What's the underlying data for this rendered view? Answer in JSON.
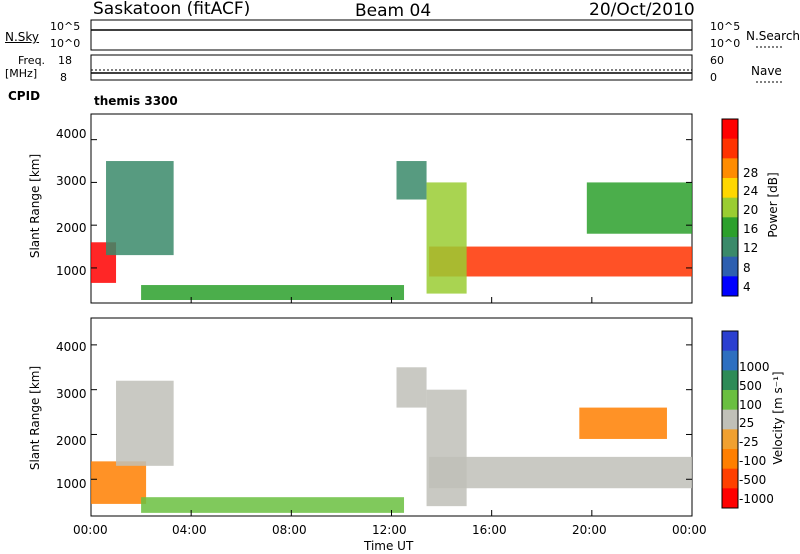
{
  "header": {
    "station": "Saskatoon (fitACF)",
    "beam": "Beam 04",
    "date": "20/Oct/2010"
  },
  "panels": {
    "nsky": {
      "label": "N.Sky",
      "ticks_left": [
        "10^5",
        "10^0"
      ],
      "ticks_right": [
        "10^5",
        "10^0"
      ],
      "right_label": "N.Search"
    },
    "freq": {
      "label_line1": "Freq.",
      "label_line2": "[MHz]",
      "ticks_left": [
        "18",
        "8"
      ],
      "ticks_right": [
        "60",
        "0"
      ],
      "right_label": "Nave"
    },
    "cpid": {
      "label": "CPID",
      "value": "themis 3300"
    }
  },
  "colors": {
    "power_scale": [
      "#0000ff",
      "#2d5fb0",
      "#3a8a6a",
      "#2ca02c",
      "#9acd32",
      "#ffd700",
      "#ff8c00",
      "#ff3300",
      "#ff0000"
    ],
    "velocity_scale": [
      "#2b3fcf",
      "#2d6fc0",
      "#2e8b57",
      "#6abf40",
      "#c0c0b8",
      "#f0a030",
      "#ff7f00",
      "#ff4000",
      "#ff0000"
    ]
  },
  "chart_data": [
    {
      "type": "heatmap",
      "xlabel": "",
      "ylabel": "Slant Range [km]",
      "x_range_hours": [
        0,
        24
      ],
      "ylim": [
        180,
        4600
      ],
      "y_ticks": [
        "1000",
        "2000",
        "3000",
        "4000"
      ],
      "colorbar": {
        "label": "Power [dB]",
        "range": [
          0,
          32
        ],
        "ticks": [
          "4",
          "8",
          "12",
          "16",
          "20",
          "24",
          "28"
        ]
      },
      "regions": [
        {
          "t": [
            0.0,
            1.0
          ],
          "range_km": [
            650,
            1600
          ],
          "value": 30
        },
        {
          "t": [
            0.6,
            3.3
          ],
          "range_km": [
            1300,
            3500
          ],
          "value": 8
        },
        {
          "t": [
            2.0,
            12.5
          ],
          "range_km": [
            250,
            600
          ],
          "value": 10
        },
        {
          "t": [
            12.2,
            13.4
          ],
          "range_km": [
            2600,
            3500
          ],
          "value": 6
        },
        {
          "t": [
            13.5,
            24.0
          ],
          "range_km": [
            800,
            1500
          ],
          "value": 26
        },
        {
          "t": [
            19.8,
            24.0
          ],
          "range_km": [
            1800,
            3000
          ],
          "value": 12
        },
        {
          "t": [
            13.4,
            15.0
          ],
          "range_km": [
            400,
            3000
          ],
          "value": 14
        }
      ]
    },
    {
      "type": "heatmap",
      "xlabel": "Time UT",
      "ylabel": "Slant Range [km]",
      "x_range_hours": [
        0,
        24
      ],
      "x_ticks": [
        "00:00",
        "04:00",
        "08:00",
        "12:00",
        "16:00",
        "20:00",
        "00:00"
      ],
      "ylim": [
        180,
        4600
      ],
      "y_ticks": [
        "1000",
        "2000",
        "3000",
        "4000"
      ],
      "colorbar": {
        "label": "Velocity [m s⁻¹]",
        "ticks": [
          "1000",
          "500",
          "100",
          "25",
          "-25",
          "-100",
          "-500",
          "-1000"
        ]
      },
      "regions": [
        {
          "t": [
            0.0,
            2.2
          ],
          "range_km": [
            450,
            1400
          ],
          "value": -200
        },
        {
          "t": [
            1.0,
            3.3
          ],
          "range_km": [
            1300,
            3200
          ],
          "value": 0
        },
        {
          "t": [
            2.0,
            12.5
          ],
          "range_km": [
            250,
            600
          ],
          "value": 80
        },
        {
          "t": [
            12.2,
            13.4
          ],
          "range_km": [
            2600,
            3500
          ],
          "value": 0
        },
        {
          "t": [
            13.5,
            24.0
          ],
          "range_km": [
            800,
            1500
          ],
          "value": 0
        },
        {
          "t": [
            19.5,
            23.0
          ],
          "range_km": [
            1900,
            2600
          ],
          "value": -200
        },
        {
          "t": [
            13.4,
            15.0
          ],
          "range_km": [
            400,
            3000
          ],
          "value": 20
        }
      ]
    }
  ]
}
